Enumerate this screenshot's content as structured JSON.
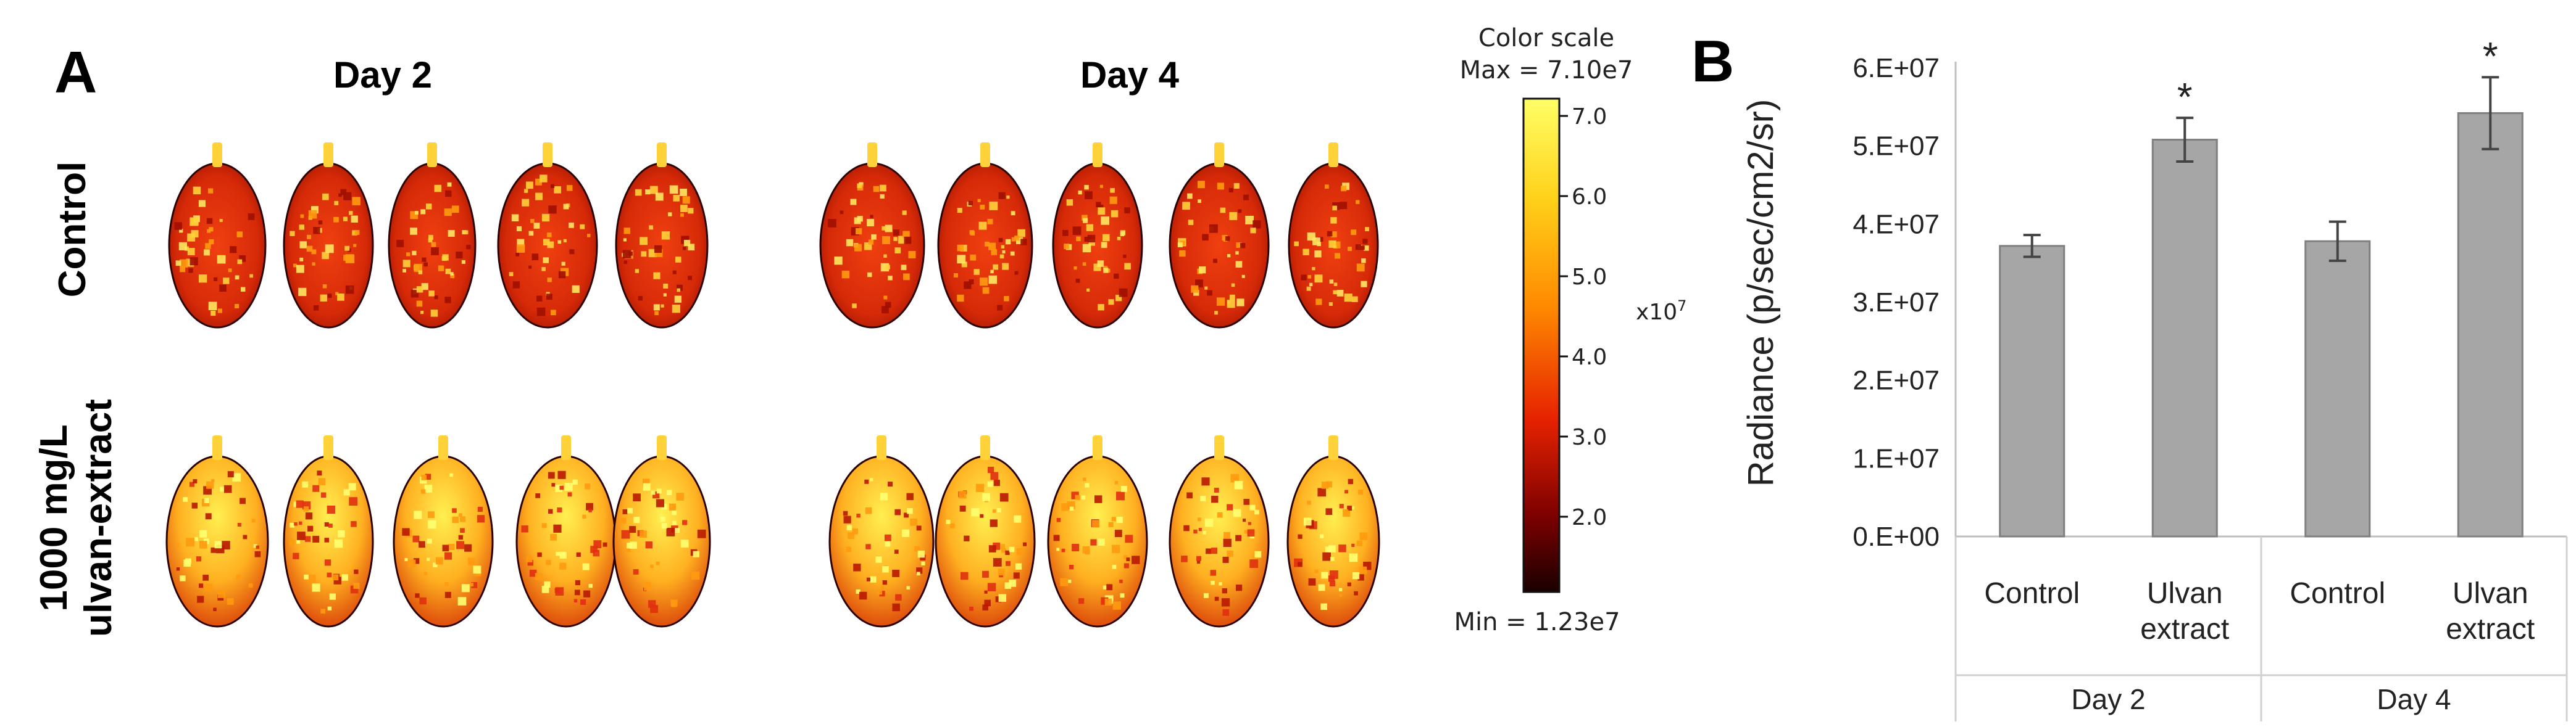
{
  "panel_a": {
    "letter": "A",
    "day_headers": [
      "Day 2",
      "Day 4"
    ],
    "row_labels": {
      "control": "Control",
      "treated_line1": "1000 mg/L",
      "treated_line2": "ulvan-extract"
    },
    "color_scale": {
      "title": "Color scale",
      "max_label": "Max = 7.10e7",
      "min_label": "Min = 1.23e7",
      "multiplier": "x10",
      "multiplier_exp": "7",
      "ticks": [
        "7.0",
        "6.0",
        "5.0",
        "4.0",
        "3.0",
        "2.0"
      ],
      "colors": [
        "#ffff66",
        "#ffd21a",
        "#ff8a00",
        "#e62200",
        "#7a0000",
        "#1a0000"
      ]
    }
  },
  "chart_data": {
    "type": "bar",
    "panel_letter": "B",
    "categories": [
      "Control",
      "Ulvan extract",
      "Control",
      "Ulvan extract"
    ],
    "category_lines": [
      [
        "Control"
      ],
      [
        "Ulvan",
        "extract"
      ],
      [
        "Control"
      ],
      [
        "Ulvan",
        "extract"
      ]
    ],
    "groups": [
      {
        "label": "Day 2",
        "span": 2
      },
      {
        "label": "Day 4",
        "span": 2
      }
    ],
    "values": [
      37200000,
      50800000,
      37800000,
      54200000
    ],
    "errors": [
      1400000,
      2800000,
      2500000,
      4600000
    ],
    "significance": [
      "",
      "*",
      "",
      "*"
    ],
    "ylabel": "Radiance (p/sec/cm2/sr)",
    "ylim": [
      0,
      60000000
    ],
    "yticks": [
      0,
      10000000,
      20000000,
      30000000,
      40000000,
      50000000,
      60000000
    ],
    "ytick_labels": [
      "0.E+00",
      "1.E+07",
      "2.E+07",
      "3.E+07",
      "4.E+07",
      "5.E+07",
      "6.E+07"
    ],
    "bar_color": "#a6a6a6",
    "bar_edge": "#7f7f7f",
    "grid": false
  }
}
